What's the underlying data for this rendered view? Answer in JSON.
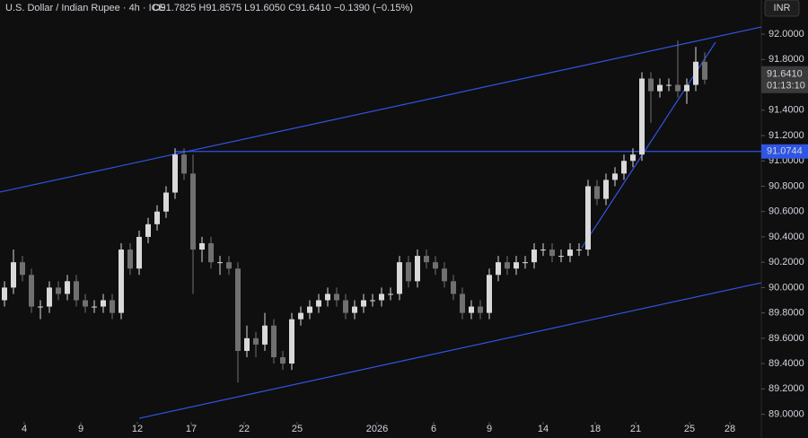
{
  "chart_data": {
    "type": "candlestick",
    "title": "U.S. Dollar / Indian Rupee · 4h · ICE",
    "ohlc_text": "O91.7825 H91.8575 L91.6050 C91.6410 −0.1390 (−0.15%)",
    "currency": "INR",
    "up_color": "#d9d9d9",
    "down_color": "#707070",
    "line_color": "#2f55e4",
    "xlim": [
      -0.5,
      84.3
    ],
    "ylim": [
      88.94,
      92.27
    ],
    "xticks": [
      {
        "value": 2.2,
        "label": "4"
      },
      {
        "value": 8.5,
        "label": "9"
      },
      {
        "value": 14.8,
        "label": "12"
      },
      {
        "value": 20.8,
        "label": "17"
      },
      {
        "value": 26.7,
        "label": "22"
      },
      {
        "value": 32.6,
        "label": "25"
      },
      {
        "value": 41.5,
        "label": "2026"
      },
      {
        "value": 47.8,
        "label": "6"
      },
      {
        "value": 54,
        "label": "9"
      },
      {
        "value": 60,
        "label": "14"
      },
      {
        "value": 65.8,
        "label": "18"
      },
      {
        "value": 70.3,
        "label": "21"
      },
      {
        "value": 76.3,
        "label": "25"
      },
      {
        "value": 80.8,
        "label": "28"
      }
    ],
    "yticks": [
      {
        "value": 89.0,
        "label": "89.0000"
      },
      {
        "value": 89.2,
        "label": "89.2000"
      },
      {
        "value": 89.4,
        "label": "89.4000"
      },
      {
        "value": 89.6,
        "label": "89.6000"
      },
      {
        "value": 89.8,
        "label": "89.8000"
      },
      {
        "value": 90.0,
        "label": "90.0000"
      },
      {
        "value": 90.2,
        "label": "90.2000"
      },
      {
        "value": 90.4,
        "label": "90.4000"
      },
      {
        "value": 90.6,
        "label": "90.6000"
      },
      {
        "value": 90.8,
        "label": "90.8000"
      },
      {
        "value": 91.0,
        "label": "91.0000"
      },
      {
        "value": 91.2,
        "label": "91.2000"
      },
      {
        "value": 91.4,
        "label": "91.4000"
      },
      {
        "value": 91.6,
        "label": "91.6000"
      },
      {
        "value": 91.8,
        "label": "91.8000"
      },
      {
        "value": 92.0,
        "label": "92.0000"
      }
    ],
    "open": [
      89.9,
      90.0,
      90.2,
      90.1,
      89.85,
      89.85,
      90.0,
      89.95,
      90.05,
      89.9,
      89.85,
      89.85,
      89.9,
      89.8,
      90.3,
      90.15,
      90.4,
      90.5,
      90.6,
      90.75,
      91.05,
      90.9,
      90.3,
      90.35,
      90.2,
      90.2,
      90.15,
      89.5,
      89.6,
      89.55,
      89.7,
      89.45,
      89.4,
      89.75,
      89.8,
      89.85,
      89.9,
      89.95,
      89.9,
      89.8,
      89.85,
      89.9,
      89.9,
      89.95,
      89.95,
      90.2,
      90.05,
      90.25,
      90.2,
      90.15,
      90.05,
      89.95,
      89.8,
      89.85,
      89.8,
      90.1,
      90.2,
      90.15,
      90.2,
      90.2,
      90.3,
      90.3,
      90.25,
      90.25,
      90.3,
      90.3,
      90.8,
      90.7,
      90.85,
      90.9,
      91.0,
      91.05,
      91.65,
      91.55,
      91.6,
      91.6,
      91.55,
      91.6,
      91.7825
    ],
    "high": [
      90.05,
      90.3,
      90.25,
      90.15,
      89.9,
      90.05,
      90.05,
      90.1,
      90.1,
      89.95,
      89.9,
      89.95,
      89.95,
      90.35,
      90.35,
      90.45,
      90.55,
      90.65,
      90.8,
      91.1,
      91.1,
      91.05,
      90.4,
      90.4,
      90.25,
      90.25,
      90.2,
      89.7,
      89.65,
      89.8,
      89.75,
      89.5,
      89.8,
      89.85,
      89.9,
      89.95,
      90.0,
      90.0,
      89.95,
      89.9,
      89.95,
      89.95,
      90.0,
      90.0,
      90.25,
      90.25,
      90.3,
      90.3,
      90.25,
      90.2,
      90.1,
      90.0,
      89.9,
      89.9,
      90.15,
      90.25,
      90.25,
      90.25,
      90.25,
      90.35,
      90.35,
      90.35,
      90.3,
      90.35,
      90.35,
      90.85,
      90.85,
      90.9,
      90.95,
      91.05,
      91.1,
      91.7,
      91.7,
      91.65,
      91.65,
      91.95,
      91.65,
      91.9,
      91.8575
    ],
    "low": [
      89.85,
      89.95,
      90.05,
      89.8,
      89.75,
      89.8,
      89.9,
      89.9,
      89.85,
      89.8,
      89.8,
      89.8,
      89.75,
      89.75,
      90.1,
      90.1,
      90.35,
      90.45,
      90.55,
      90.7,
      90.85,
      89.95,
      90.2,
      90.15,
      90.1,
      90.1,
      89.25,
      89.45,
      89.45,
      89.5,
      89.4,
      89.35,
      89.35,
      89.7,
      89.75,
      89.8,
      89.85,
      89.85,
      89.75,
      89.75,
      89.8,
      89.85,
      89.85,
      89.9,
      89.9,
      90.0,
      90.0,
      90.15,
      90.1,
      90.0,
      89.9,
      89.75,
      89.75,
      89.75,
      89.75,
      90.05,
      90.1,
      90.1,
      90.15,
      90.15,
      90.25,
      90.2,
      90.2,
      90.2,
      90.25,
      90.25,
      90.65,
      90.65,
      90.8,
      90.85,
      90.95,
      91.0,
      91.3,
      91.5,
      91.55,
      91.5,
      91.45,
      91.55,
      91.605
    ],
    "close": [
      90.0,
      90.2,
      90.1,
      89.85,
      89.85,
      90.0,
      89.95,
      90.05,
      89.9,
      89.85,
      89.85,
      89.9,
      89.8,
      90.3,
      90.15,
      90.4,
      90.5,
      90.6,
      90.75,
      91.05,
      90.9,
      90.3,
      90.35,
      90.2,
      90.2,
      90.15,
      89.5,
      89.6,
      89.55,
      89.7,
      89.45,
      89.4,
      89.75,
      89.8,
      89.85,
      89.9,
      89.95,
      89.9,
      89.8,
      89.85,
      89.9,
      89.9,
      89.95,
      89.95,
      90.2,
      90.05,
      90.25,
      90.2,
      90.15,
      90.05,
      89.95,
      89.8,
      89.85,
      89.8,
      90.1,
      90.2,
      90.15,
      90.2,
      90.2,
      90.3,
      90.3,
      90.25,
      90.25,
      90.3,
      90.3,
      90.8,
      90.7,
      90.85,
      90.9,
      91.0,
      91.05,
      91.65,
      91.55,
      91.6,
      91.6,
      91.55,
      91.6,
      91.7825,
      91.641
    ],
    "lines": [
      {
        "x": [
          -0.5,
          84.3
        ],
        "y": [
          90.754,
          92.057
        ]
      },
      {
        "x": [
          15,
          84.3
        ],
        "y": [
          88.968,
          90.038
        ]
      },
      {
        "x": [
          19,
          84.3
        ],
        "y": [
          91.0744,
          91.0744
        ]
      },
      {
        "x": [
          64.3,
          79.2
        ],
        "y": [
          90.314,
          91.937
        ]
      }
    ],
    "last_price": {
      "value": 91.641,
      "label": "91.6410",
      "countdown": "01:13:10"
    },
    "level_price": {
      "value": 91.0744,
      "label": "91.0744"
    }
  }
}
